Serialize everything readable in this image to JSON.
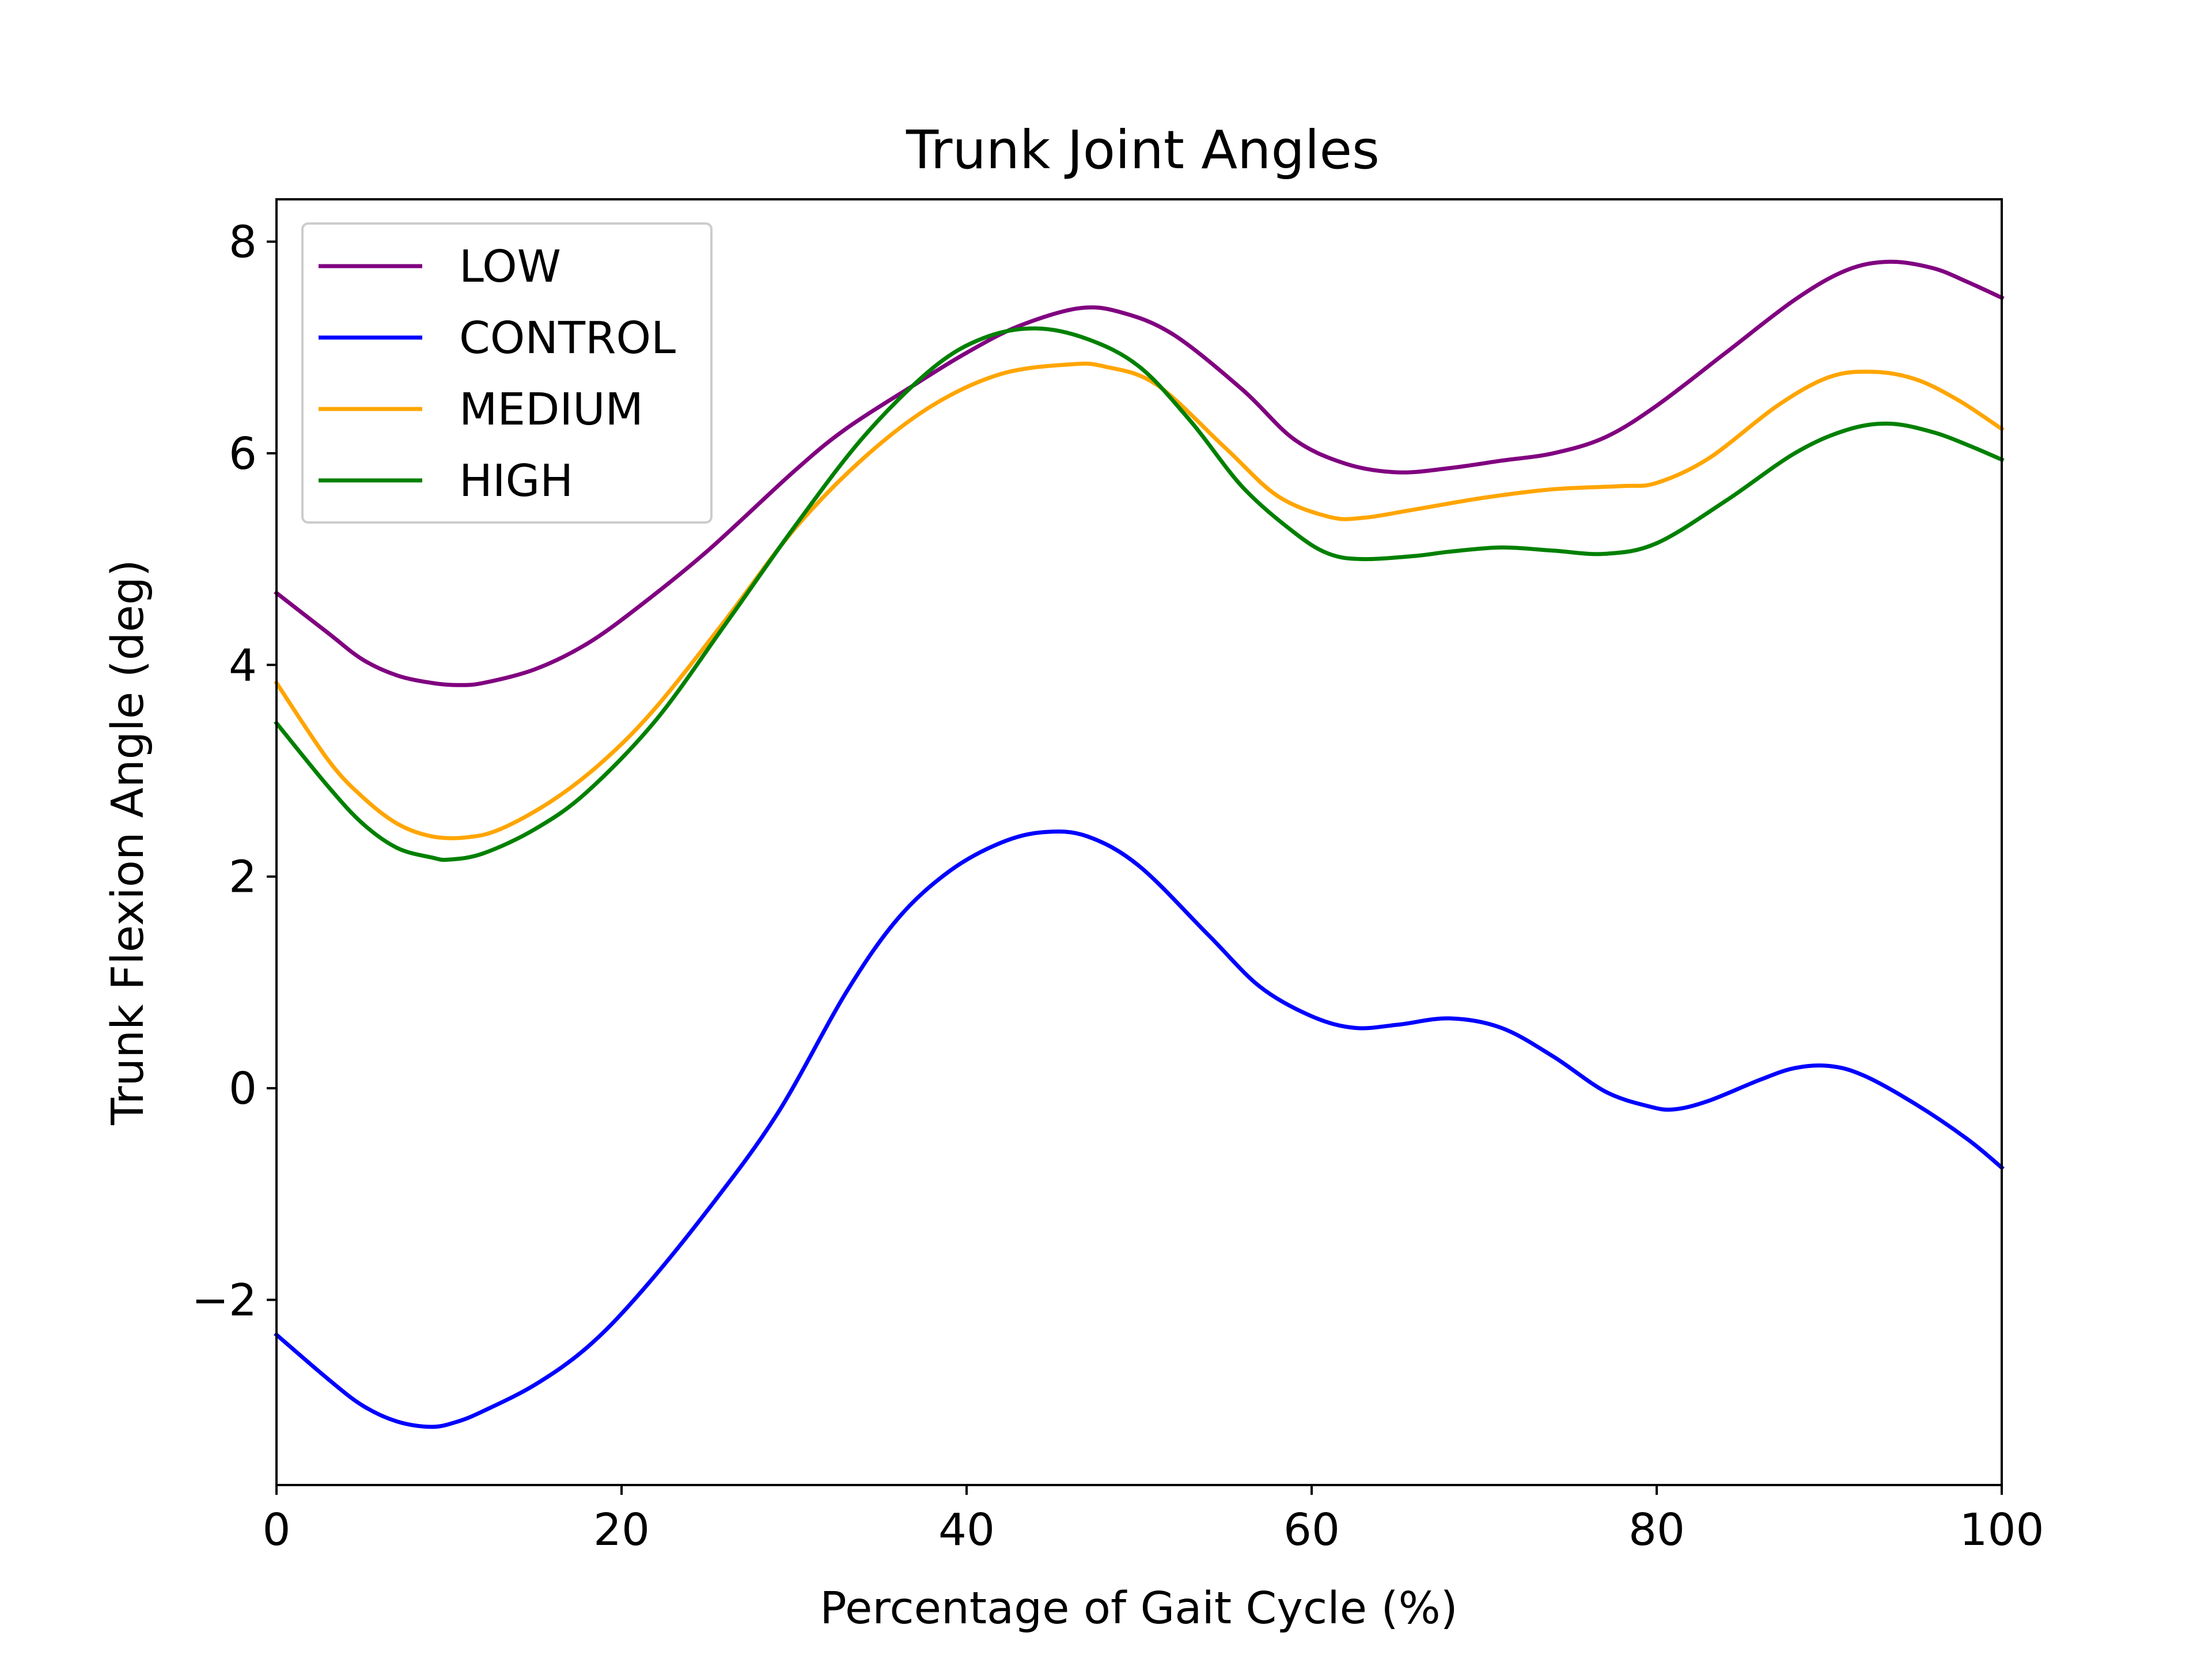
{
  "chart_data": {
    "type": "line",
    "title": "Trunk Joint Angles",
    "xlabel": "Percentage of Gait Cycle (%)",
    "ylabel": "Trunk Flexion Angle (deg)",
    "xlim": [
      0,
      100
    ],
    "ylim": [
      -3.75,
      8.4
    ],
    "xticks": [
      0,
      20,
      40,
      60,
      80,
      100
    ],
    "xtick_labels": [
      "0",
      "20",
      "40",
      "60",
      "80",
      "100"
    ],
    "yticks": [
      -2,
      0,
      2,
      4,
      6,
      8
    ],
    "ytick_labels": [
      "−2",
      "0",
      "2",
      "4",
      "6",
      "8"
    ],
    "grid": false,
    "legend_position": "top-left",
    "series": [
      {
        "name": "LOW",
        "color": "#800080",
        "x": [
          0,
          3,
          5,
          7,
          9,
          10.5,
          12,
          15,
          18,
          21,
          25,
          30,
          33,
          37,
          40,
          43,
          46.5,
          49,
          52,
          56,
          59,
          62,
          65,
          68,
          71,
          74,
          77,
          80,
          84,
          88,
          91,
          93.5,
          96,
          98,
          100
        ],
        "y": [
          4.68,
          4.3,
          4.05,
          3.9,
          3.83,
          3.81,
          3.83,
          3.96,
          4.2,
          4.55,
          5.08,
          5.83,
          6.23,
          6.65,
          6.95,
          7.2,
          7.37,
          7.33,
          7.12,
          6.6,
          6.13,
          5.9,
          5.82,
          5.86,
          5.93,
          6.0,
          6.15,
          6.45,
          6.95,
          7.45,
          7.73,
          7.81,
          7.75,
          7.62,
          7.47
        ]
      },
      {
        "name": "CONTROL",
        "color": "#0000ff",
        "x": [
          0,
          3,
          5,
          7,
          9,
          10.5,
          12,
          15,
          18,
          21,
          25,
          29,
          33,
          36,
          39,
          42,
          44.5,
          47,
          50,
          54,
          57,
          60,
          62.5,
          65,
          68,
          71,
          74,
          77,
          79.5,
          81,
          83,
          86,
          88,
          90,
          92,
          95,
          98,
          100
        ],
        "y": [
          -2.33,
          -2.75,
          -3.0,
          -3.15,
          -3.2,
          -3.15,
          -3.05,
          -2.8,
          -2.45,
          -1.95,
          -1.15,
          -0.25,
          0.9,
          1.6,
          2.05,
          2.32,
          2.42,
          2.38,
          2.1,
          1.45,
          0.96,
          0.68,
          0.57,
          0.6,
          0.66,
          0.57,
          0.3,
          -0.03,
          -0.17,
          -0.2,
          -0.12,
          0.08,
          0.19,
          0.21,
          0.12,
          -0.15,
          -0.48,
          -0.75
        ]
      },
      {
        "name": "MEDIUM",
        "color": "#ffa500",
        "x": [
          0,
          3,
          5,
          7,
          9,
          11,
          13,
          16,
          19,
          22,
          26,
          30,
          34,
          38,
          42,
          46,
          48,
          51,
          55,
          58,
          61,
          63,
          66,
          70,
          74,
          78,
          80,
          83,
          87,
          90,
          92.5,
          95,
          97.5,
          100
        ],
        "y": [
          3.83,
          3.1,
          2.75,
          2.5,
          2.38,
          2.37,
          2.45,
          2.72,
          3.1,
          3.6,
          4.42,
          5.28,
          5.95,
          6.45,
          6.75,
          6.84,
          6.82,
          6.65,
          6.05,
          5.6,
          5.4,
          5.39,
          5.47,
          5.58,
          5.66,
          5.69,
          5.72,
          5.95,
          6.45,
          6.72,
          6.77,
          6.7,
          6.5,
          6.23
        ]
      },
      {
        "name": "HIGH",
        "color": "#008000",
        "x": [
          0,
          3,
          5,
          7,
          9,
          10,
          12,
          15,
          18,
          22,
          26,
          30,
          34,
          38,
          41,
          44,
          47,
          50,
          53,
          56,
          59,
          61,
          63,
          66,
          68,
          71,
          74,
          77,
          80,
          84,
          88,
          91,
          93.5,
          96,
          98,
          100
        ],
        "y": [
          3.45,
          2.85,
          2.5,
          2.27,
          2.18,
          2.16,
          2.22,
          2.45,
          2.8,
          3.48,
          4.38,
          5.3,
          6.15,
          6.8,
          7.09,
          7.18,
          7.08,
          6.82,
          6.3,
          5.68,
          5.25,
          5.05,
          5.0,
          5.03,
          5.07,
          5.11,
          5.08,
          5.05,
          5.15,
          5.55,
          6.0,
          6.22,
          6.28,
          6.2,
          6.08,
          5.94
        ]
      }
    ]
  }
}
